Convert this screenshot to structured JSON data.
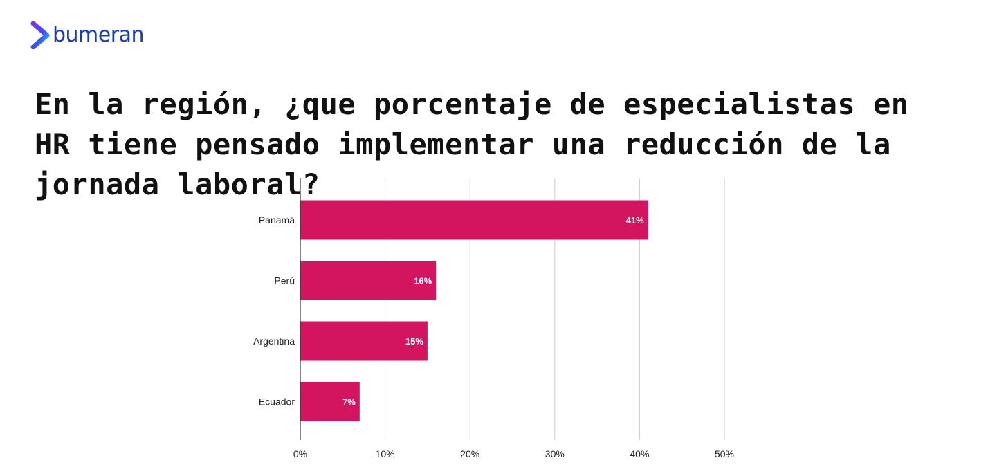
{
  "brand": {
    "name": "bumeran",
    "logo_icon": "chevron-arrow-icon",
    "color": "#1d3ea8"
  },
  "chart_data": {
    "type": "bar",
    "orientation": "horizontal",
    "title": "En la región, ¿que porcentaje de especialistas en HR tiene pensado implementar una reducción de la jornada laboral?",
    "categories": [
      "Panamá",
      "Perú",
      "Argentina",
      "Ecuador"
    ],
    "values": [
      41,
      16,
      15,
      7
    ],
    "value_labels": [
      "41%",
      "16%",
      "15%",
      "7%"
    ],
    "xlim": [
      0,
      50
    ],
    "x_ticks": [
      0,
      10,
      20,
      30,
      40,
      50
    ],
    "x_tick_labels": [
      "0%",
      "10%",
      "20%",
      "30%",
      "40%",
      "50%"
    ],
    "bar_color": "#d3145f",
    "grid": true,
    "legend": "none"
  }
}
